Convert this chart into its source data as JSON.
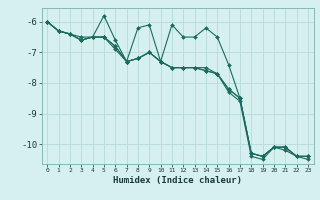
{
  "xlabel": "Humidex (Indice chaleur)",
  "ylabel": "",
  "background_color": "#d6f0f0",
  "grid_color": "#b8dada",
  "line_color": "#1a6b5e",
  "xlim": [
    -0.5,
    23.5
  ],
  "ylim": [
    -10.65,
    -5.55
  ],
  "ytick_values": [
    -6,
    -7,
    -8,
    -9,
    -10
  ],
  "series_x": [
    0,
    1,
    2,
    3,
    4,
    5,
    6,
    7,
    8,
    9,
    10,
    11,
    12,
    13,
    14,
    15,
    16,
    17,
    18,
    19,
    20,
    21,
    22,
    23
  ],
  "series": [
    [
      -6.0,
      -6.3,
      -6.4,
      -6.6,
      -6.5,
      -5.8,
      -6.6,
      -7.3,
      -6.2,
      -6.1,
      -7.3,
      -6.1,
      -6.5,
      -6.5,
      -6.2,
      -6.5,
      -7.4,
      -8.5,
      -10.3,
      -10.4,
      -10.1,
      -10.1,
      -10.4,
      -10.4
    ],
    [
      -6.0,
      -6.3,
      -6.4,
      -6.6,
      -6.5,
      -6.5,
      -6.8,
      -7.3,
      -7.2,
      -7.0,
      -7.3,
      -7.5,
      -7.5,
      -7.5,
      -7.6,
      -7.7,
      -8.2,
      -8.5,
      -10.3,
      -10.4,
      -10.1,
      -10.1,
      -10.4,
      -10.4
    ],
    [
      -6.0,
      -6.3,
      -6.4,
      -6.5,
      -6.5,
      -6.5,
      -6.8,
      -7.3,
      -7.2,
      -7.0,
      -7.3,
      -7.5,
      -7.5,
      -7.5,
      -7.6,
      -7.7,
      -8.2,
      -8.5,
      -10.3,
      -10.4,
      -10.1,
      -10.1,
      -10.4,
      -10.4
    ],
    [
      -6.0,
      -6.3,
      -6.4,
      -6.6,
      -6.5,
      -6.5,
      -6.9,
      -7.3,
      -7.2,
      -7.0,
      -7.3,
      -7.5,
      -7.5,
      -7.5,
      -7.5,
      -7.7,
      -8.3,
      -8.6,
      -10.4,
      -10.5,
      -10.1,
      -10.2,
      -10.4,
      -10.5
    ]
  ]
}
